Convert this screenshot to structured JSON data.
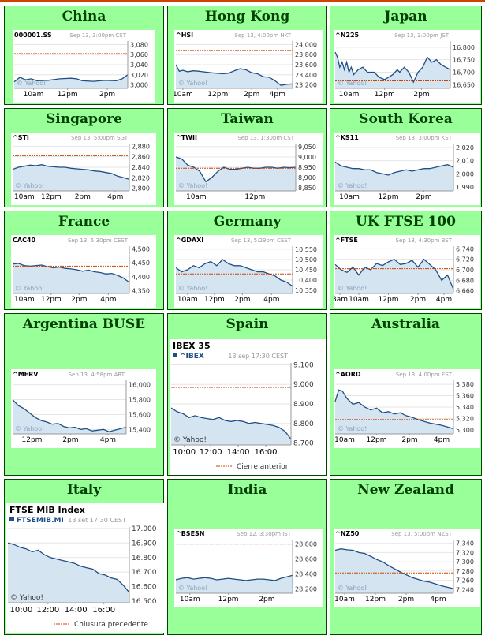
{
  "colors": {
    "cell_bg": "#99ff99",
    "cell_border": "#004400",
    "title": "#004000",
    "line": "#1f4f85",
    "fill": "#d4e4f0",
    "ref": "#cc4400",
    "grey": "#999999"
  },
  "chart_data": [
    {
      "market": "China",
      "style": "small",
      "type": "area",
      "symbol": "000001.SS",
      "timestamp": "Sep 13, 3:00pm CST",
      "yticks": [
        3000,
        3020,
        3040,
        3060,
        3080
      ],
      "ytick_labels": [
        "3,000",
        "3,020",
        "3,040",
        "3,060",
        "3,080"
      ],
      "ylim": [
        2993,
        3087
      ],
      "xticks": [
        "10am",
        "12pm",
        "2pm"
      ],
      "xtick_pos": [
        0.17,
        0.47,
        0.82
      ],
      "watermark": "© Yahoo!",
      "prev_close": 3062,
      "x": [
        0,
        0.05,
        0.1,
        0.15,
        0.2,
        0.3,
        0.4,
        0.5,
        0.55,
        0.6,
        0.7,
        0.8,
        0.9,
        0.95,
        1
      ],
      "y": [
        3006,
        3015,
        3010,
        3012,
        3008,
        3009,
        3012,
        3013,
        3012,
        3008,
        3007,
        3009,
        3008,
        3012,
        3020
      ]
    },
    {
      "market": "Hong Kong",
      "style": "small",
      "type": "area",
      "symbol": "^HSI",
      "timestamp": "Sep 13, 4:00pm HKT",
      "yticks": [
        23200,
        23400,
        23600,
        23800,
        24000
      ],
      "ytick_labels": [
        "23,200",
        "23,400",
        "23,600",
        "23,800",
        "24,000"
      ],
      "ylim": [
        23130,
        24070
      ],
      "xticks": [
        "10am",
        "12pm",
        "2pm",
        "4pm"
      ],
      "xtick_pos": [
        0.06,
        0.36,
        0.65,
        0.87
      ],
      "watermark": "© Yahoo!",
      "prev_close": 23880,
      "x": [
        0,
        0.03,
        0.06,
        0.1,
        0.15,
        0.2,
        0.3,
        0.4,
        0.45,
        0.5,
        0.55,
        0.6,
        0.65,
        0.7,
        0.75,
        0.8,
        0.85,
        0.9,
        0.95,
        1
      ],
      "y": [
        23600,
        23470,
        23490,
        23460,
        23480,
        23470,
        23440,
        23420,
        23430,
        23480,
        23520,
        23500,
        23440,
        23420,
        23360,
        23350,
        23280,
        23190,
        23210,
        23220
      ]
    },
    {
      "market": "Japan",
      "style": "small",
      "type": "area",
      "symbol": "^N225",
      "timestamp": "Sep 13, 3:00pm JST",
      "yticks": [
        16650,
        16700,
        16750,
        16800
      ],
      "ytick_labels": [
        "16,650",
        "16,700",
        "16,750",
        "16,800"
      ],
      "ylim": [
        16635,
        16825
      ],
      "xticks": [
        "10am",
        "12pm",
        "2pm"
      ],
      "xtick_pos": [
        0.12,
        0.43,
        0.75
      ],
      "watermark": "© Yahoo!",
      "prev_close": 16665,
      "x": [
        0,
        0.02,
        0.04,
        0.06,
        0.08,
        0.1,
        0.12,
        0.14,
        0.16,
        0.2,
        0.24,
        0.28,
        0.3,
        0.34,
        0.38,
        0.43,
        0.5,
        0.52,
        0.54,
        0.56,
        0.6,
        0.64,
        0.68,
        0.72,
        0.76,
        0.78,
        0.8,
        0.84,
        0.88,
        0.92,
        0.96,
        1
      ],
      "y": [
        16780,
        16760,
        16720,
        16740,
        16710,
        16740,
        16700,
        16720,
        16690,
        16710,
        16720,
        16700,
        16700,
        16700,
        16680,
        16670,
        16690,
        16700,
        16710,
        16700,
        16720,
        16700,
        16660,
        16700,
        16720,
        16740,
        16760,
        16740,
        16750,
        16730,
        16720,
        16710
      ]
    },
    {
      "market": "Singapore",
      "style": "small",
      "type": "area",
      "symbol": "^STI",
      "timestamp": "Sep 13, 5:00pm SGT",
      "yticks": [
        2800,
        2820,
        2840,
        2860,
        2880
      ],
      "ytick_labels": [
        "2,800",
        "2,820",
        "2,840",
        "2,860",
        "2,880"
      ],
      "ylim": [
        2795,
        2885
      ],
      "xticks": [
        "10am",
        "12pm",
        "2pm",
        "4pm"
      ],
      "xtick_pos": [
        0.1,
        0.33,
        0.6,
        0.88
      ],
      "watermark": "© Yahoo!",
      "prev_close": 2862,
      "x": [
        0,
        0.05,
        0.1,
        0.15,
        0.2,
        0.25,
        0.3,
        0.35,
        0.4,
        0.45,
        0.5,
        0.55,
        0.6,
        0.65,
        0.7,
        0.75,
        0.8,
        0.85,
        0.9,
        0.95,
        1
      ],
      "y": [
        2836,
        2840,
        2842,
        2844,
        2843,
        2845,
        2842,
        2841,
        2840,
        2840,
        2838,
        2837,
        2836,
        2835,
        2833,
        2832,
        2830,
        2828,
        2823,
        2820,
        2817
      ]
    },
    {
      "market": "Taiwan",
      "style": "small",
      "type": "area",
      "symbol": "^TWII",
      "timestamp": "Sep 13, 1:30pm CST",
      "yticks": [
        8850,
        8900,
        8950,
        9000,
        9050
      ],
      "ytick_labels": [
        "8,850",
        "8,900",
        "8,950",
        "9,000",
        "9,050"
      ],
      "ylim": [
        8835,
        9065
      ],
      "xticks": [
        "10am",
        "12pm"
      ],
      "xtick_pos": [
        0.17,
        0.66
      ],
      "watermark": "© Yahoo!",
      "prev_close": 8945,
      "x": [
        0,
        0.05,
        0.1,
        0.15,
        0.2,
        0.25,
        0.3,
        0.35,
        0.4,
        0.45,
        0.5,
        0.55,
        0.6,
        0.65,
        0.7,
        0.75,
        0.8,
        0.85,
        0.9,
        0.95,
        1
      ],
      "y": [
        9000,
        8990,
        8960,
        8950,
        8930,
        8880,
        8900,
        8930,
        8950,
        8940,
        8940,
        8945,
        8950,
        8945,
        8945,
        8950,
        8950,
        8945,
        8950,
        8948,
        8950
      ]
    },
    {
      "market": "South Korea",
      "style": "small",
      "type": "area",
      "symbol": "^KS11",
      "timestamp": "Sep 13, 3:00pm KST",
      "yticks": [
        1990,
        2000,
        2010,
        2020
      ],
      "ytick_labels": [
        "1,990",
        "2,000",
        "2,010",
        "2,020"
      ],
      "ylim": [
        1987,
        2023
      ],
      "xticks": [
        "10am",
        "12pm",
        "2pm"
      ],
      "xtick_pos": [
        0.12,
        0.45,
        0.75
      ],
      "watermark": "© Yahoo!",
      "prev_close": 1987,
      "x": [
        0,
        0.05,
        0.1,
        0.15,
        0.2,
        0.25,
        0.3,
        0.35,
        0.4,
        0.45,
        0.5,
        0.55,
        0.6,
        0.65,
        0.7,
        0.75,
        0.8,
        0.85,
        0.9,
        0.95,
        1
      ],
      "y": [
        2009,
        2006,
        2005,
        2004,
        2004,
        2003,
        2003,
        2001,
        2000,
        1999,
        2001,
        2002,
        2003,
        2002,
        2003,
        2004,
        2004,
        2005,
        2006,
        2007,
        2005
      ]
    },
    {
      "market": "France",
      "style": "small",
      "type": "area",
      "symbol": "CAC40",
      "timestamp": "Sep 13, 5:30pm CEST",
      "yticks": [
        4350,
        4400,
        4450,
        4500
      ],
      "ytick_labels": [
        "4,350",
        "4,400",
        "4,450",
        "4,500"
      ],
      "ylim": [
        4340,
        4510
      ],
      "xticks": [
        "10am",
        "12pm",
        "2pm",
        "4pm"
      ],
      "xtick_pos": [
        0.1,
        0.33,
        0.57,
        0.82
      ],
      "watermark": "© Yahoo!",
      "prev_close": 4438,
      "x": [
        0,
        0.05,
        0.1,
        0.15,
        0.2,
        0.25,
        0.3,
        0.35,
        0.4,
        0.45,
        0.5,
        0.55,
        0.6,
        0.65,
        0.7,
        0.75,
        0.8,
        0.85,
        0.9,
        0.95,
        1
      ],
      "y": [
        4445,
        4448,
        4440,
        4438,
        4440,
        4442,
        4436,
        4432,
        4435,
        4430,
        4428,
        4425,
        4420,
        4424,
        4418,
        4415,
        4410,
        4412,
        4405,
        4395,
        4380
      ]
    },
    {
      "market": "Germany",
      "style": "small",
      "type": "area",
      "symbol": "^GDAXI",
      "timestamp": "Sep 13, 5:29pm CEST",
      "yticks": [
        10350,
        10400,
        10450,
        10500,
        10550
      ],
      "ytick_labels": [
        "10,350",
        "10,400",
        "10,450",
        "10,500",
        "10,550"
      ],
      "ylim": [
        10335,
        10565
      ],
      "xticks": [
        "10am",
        "12pm",
        "2pm",
        "4pm"
      ],
      "xtick_pos": [
        0.1,
        0.33,
        0.57,
        0.82
      ],
      "watermark": "© Yahoo!",
      "prev_close": 10430,
      "x": [
        0,
        0.05,
        0.1,
        0.15,
        0.2,
        0.25,
        0.3,
        0.35,
        0.4,
        0.45,
        0.5,
        0.55,
        0.6,
        0.65,
        0.7,
        0.75,
        0.8,
        0.85,
        0.9,
        0.95,
        1
      ],
      "y": [
        10460,
        10440,
        10450,
        10470,
        10460,
        10480,
        10490,
        10470,
        10500,
        10480,
        10470,
        10470,
        10460,
        10450,
        10440,
        10440,
        10430,
        10420,
        10400,
        10390,
        10370
      ]
    },
    {
      "market": "UK FTSE 100",
      "style": "small",
      "type": "area",
      "symbol": "^FTSE",
      "timestamp": "Sep 13, 4:30pm BST",
      "yticks": [
        6660,
        6680,
        6700,
        6720,
        6740
      ],
      "ytick_labels": [
        "6,660",
        "6,680",
        "6,700",
        "6,720",
        "6,740"
      ],
      "ylim": [
        6655,
        6745
      ],
      "xticks": [
        "8am",
        "10am",
        "12pm",
        "2pm",
        "4pm"
      ],
      "xtick_pos": [
        0.04,
        0.2,
        0.45,
        0.7,
        0.92
      ],
      "watermark": "© Yahoo!",
      "prev_close": 6702,
      "x": [
        0,
        0.05,
        0.1,
        0.15,
        0.2,
        0.25,
        0.3,
        0.35,
        0.4,
        0.45,
        0.5,
        0.55,
        0.6,
        0.65,
        0.7,
        0.75,
        0.8,
        0.85,
        0.9,
        0.95,
        1
      ],
      "y": [
        6710,
        6700,
        6695,
        6705,
        6690,
        6705,
        6700,
        6712,
        6708,
        6715,
        6720,
        6710,
        6712,
        6718,
        6705,
        6720,
        6710,
        6700,
        6680,
        6690,
        6663
      ]
    },
    {
      "market": "Argentina BUSE",
      "style": "small",
      "type": "area",
      "symbol": "^MERV",
      "timestamp": "Sep 13, 4:58pm ART",
      "yticks": [
        15400,
        15600,
        15800,
        16000
      ],
      "ytick_labels": [
        "15,400",
        "15,600",
        "15,800",
        "16,000"
      ],
      "ylim": [
        15340,
        16060
      ],
      "xticks": [
        "12pm",
        "2pm",
        "4pm"
      ],
      "xtick_pos": [
        0.17,
        0.51,
        0.84
      ],
      "watermark": "© Yahoo!",
      "x": [
        0,
        0.05,
        0.1,
        0.15,
        0.2,
        0.25,
        0.3,
        0.35,
        0.4,
        0.45,
        0.5,
        0.55,
        0.6,
        0.65,
        0.7,
        0.75,
        0.8,
        0.85,
        0.9,
        0.95,
        1
      ],
      "y": [
        15800,
        15720,
        15680,
        15620,
        15560,
        15520,
        15500,
        15470,
        15480,
        15440,
        15420,
        15430,
        15400,
        15410,
        15380,
        15390,
        15400,
        15370,
        15390,
        15410,
        15430
      ]
    },
    {
      "market": "Spain",
      "style": "large",
      "type": "area",
      "index_name": "IBEX 35",
      "symbol": "^IBEX",
      "timestamp": "13 sep 17:30 CEST",
      "yticks": [
        8700,
        8800,
        8900,
        9000,
        9100
      ],
      "ytick_labels": [
        "8.700",
        "8.800",
        "8.900",
        "9.000",
        "9.100"
      ],
      "ylim": [
        8690,
        9110
      ],
      "xticks": [
        "10:00",
        "12:00",
        "14:00",
        "16:00"
      ],
      "xtick_pos": [
        0.11,
        0.33,
        0.56,
        0.79
      ],
      "watermark": "© Yahoo!",
      "prev_close": 8985,
      "prev_close_label": "Cierre anterior",
      "x": [
        0,
        0.05,
        0.1,
        0.15,
        0.2,
        0.25,
        0.3,
        0.35,
        0.4,
        0.45,
        0.5,
        0.55,
        0.6,
        0.65,
        0.7,
        0.75,
        0.8,
        0.85,
        0.9,
        0.95,
        1
      ],
      "y": [
        8880,
        8860,
        8850,
        8830,
        8840,
        8830,
        8825,
        8820,
        8830,
        8815,
        8810,
        8815,
        8810,
        8800,
        8805,
        8800,
        8795,
        8790,
        8780,
        8760,
        8720
      ]
    },
    {
      "market": "Australia",
      "style": "small",
      "type": "area",
      "symbol": "^AORD",
      "timestamp": "Sep 13, 4:00pm EST",
      "yticks": [
        5300,
        5320,
        5340,
        5360,
        5380
      ],
      "ytick_labels": [
        "5,300",
        "5,320",
        "5,340",
        "5,360",
        "5,380"
      ],
      "ylim": [
        5293,
        5387
      ],
      "xticks": [
        "10am",
        "12pm",
        "2pm",
        "4pm"
      ],
      "xtick_pos": [
        0.08,
        0.35,
        0.63,
        0.9
      ],
      "watermark": "© Yahoo!",
      "prev_close": 5318,
      "x": [
        0,
        0.03,
        0.06,
        0.1,
        0.15,
        0.2,
        0.25,
        0.3,
        0.35,
        0.4,
        0.45,
        0.5,
        0.55,
        0.6,
        0.65,
        0.7,
        0.75,
        0.8,
        0.85,
        0.9,
        0.95,
        1
      ],
      "y": [
        5350,
        5370,
        5368,
        5355,
        5345,
        5348,
        5340,
        5335,
        5338,
        5330,
        5332,
        5328,
        5330,
        5325,
        5322,
        5318,
        5315,
        5312,
        5310,
        5308,
        5305,
        5302
      ]
    },
    {
      "market": "Italy",
      "style": "large",
      "type": "area",
      "index_name": "FTSE MIB Index",
      "symbol": "FTSEMIB.MI",
      "timestamp": "13 set 17:30 CEST",
      "yticks": [
        16500,
        16600,
        16700,
        16800,
        16900,
        17000
      ],
      "ytick_labels": [
        "16.500",
        "16.600",
        "16.700",
        "16.800",
        "16.900",
        "17.000"
      ],
      "ylim": [
        16490,
        17010
      ],
      "xticks": [
        "10:00",
        "12:00",
        "14:00",
        "16:00"
      ],
      "xtick_pos": [
        0.11,
        0.33,
        0.56,
        0.79
      ],
      "watermark": "© Yahoo!",
      "prev_close": 16845,
      "prev_close_label": "Chiusura precedente",
      "x": [
        0,
        0.05,
        0.1,
        0.15,
        0.2,
        0.25,
        0.3,
        0.35,
        0.4,
        0.45,
        0.5,
        0.55,
        0.6,
        0.65,
        0.7,
        0.75,
        0.8,
        0.85,
        0.9,
        0.95,
        1
      ],
      "y": [
        16900,
        16890,
        16870,
        16860,
        16840,
        16850,
        16820,
        16800,
        16790,
        16780,
        16770,
        16760,
        16740,
        16730,
        16720,
        16690,
        16680,
        16660,
        16650,
        16610,
        16560
      ]
    },
    {
      "market": "India",
      "style": "small",
      "type": "area",
      "symbol": "^BSESN",
      "timestamp": "Sep 12, 3:30pm IST",
      "yticks": [
        28200,
        28400,
        28600,
        28800
      ],
      "ytick_labels": [
        "28,200",
        "28,400",
        "28,600",
        "28,800"
      ],
      "ylim": [
        28140,
        28860
      ],
      "xticks": [
        "10am",
        "12pm",
        "2pm"
      ],
      "xtick_pos": [
        0.12,
        0.45,
        0.78
      ],
      "watermark": "© Yahoo!",
      "prev_close": 28800,
      "x": [
        0,
        0.05,
        0.1,
        0.15,
        0.2,
        0.25,
        0.3,
        0.35,
        0.4,
        0.45,
        0.5,
        0.55,
        0.6,
        0.65,
        0.7,
        0.75,
        0.8,
        0.85,
        0.9,
        0.95,
        1
      ],
      "y": [
        28320,
        28340,
        28350,
        28330,
        28340,
        28350,
        28340,
        28320,
        28330,
        28340,
        28330,
        28320,
        28310,
        28320,
        28330,
        28330,
        28320,
        28310,
        28340,
        28360,
        28380
      ]
    },
    {
      "market": "New Zealand",
      "style": "small",
      "type": "area",
      "symbol": "^NZ50",
      "timestamp": "Sep 13, 5:00pm NZST",
      "yticks": [
        7240,
        7260,
        7280,
        7300,
        7320,
        7340
      ],
      "ytick_labels": [
        "7,240",
        "7,260",
        "7,280",
        "7,300",
        "7,320",
        "7,340"
      ],
      "ylim": [
        7232,
        7348
      ],
      "xticks": [
        "10am",
        "12pm",
        "2pm",
        "4pm"
      ],
      "xtick_pos": [
        0.08,
        0.34,
        0.6,
        0.87
      ],
      "watermark": "© Yahoo!",
      "prev_close": 7276,
      "x": [
        0,
        0.05,
        0.1,
        0.15,
        0.2,
        0.25,
        0.3,
        0.35,
        0.4,
        0.45,
        0.5,
        0.55,
        0.6,
        0.65,
        0.7,
        0.75,
        0.8,
        0.85,
        0.9,
        0.95,
        1
      ],
      "y": [
        7325,
        7328,
        7326,
        7325,
        7320,
        7318,
        7312,
        7305,
        7300,
        7292,
        7285,
        7278,
        7272,
        7266,
        7262,
        7258,
        7256,
        7252,
        7248,
        7245,
        7242
      ]
    }
  ]
}
